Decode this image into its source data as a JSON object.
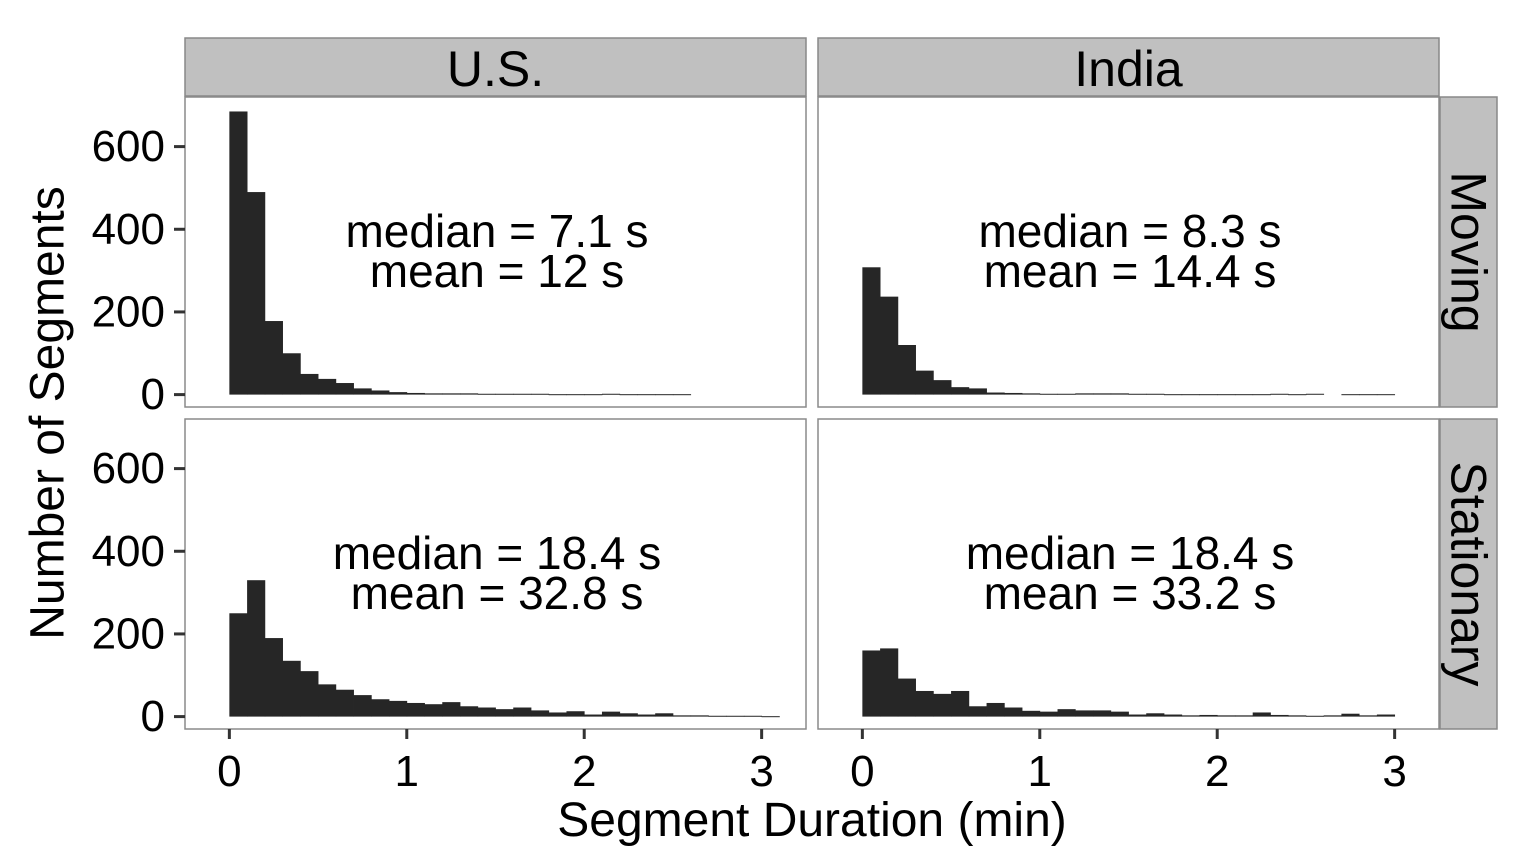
{
  "chart_data": {
    "type": "bar",
    "xlabel": "Segment Duration (min)",
    "ylabel": "Number of Segments",
    "col_facets": [
      "U.S.",
      "India"
    ],
    "row_facets": [
      "Moving",
      "Stationary"
    ],
    "xlim": [
      -0.25,
      3.25
    ],
    "ylim": [
      -30,
      720
    ],
    "x_ticks": [
      0,
      1,
      2,
      3
    ],
    "y_ticks": [
      0,
      200,
      400,
      600
    ],
    "bin_width": 0.1,
    "bin_starts": [
      0,
      0.1,
      0.2,
      0.3,
      0.4,
      0.5,
      0.6,
      0.7,
      0.8,
      0.9,
      1.0,
      1.1,
      1.2,
      1.3,
      1.4,
      1.5,
      1.6,
      1.7,
      1.8,
      1.9,
      2.0,
      2.1,
      2.2,
      2.3,
      2.4,
      2.5,
      2.6,
      2.7,
      2.8,
      2.9,
      3.0
    ],
    "panels": [
      {
        "col": "U.S.",
        "row": "Moving",
        "annotation": [
          "median = 7.1 s",
          "mean = 12 s"
        ],
        "counts": [
          685,
          490,
          178,
          100,
          50,
          38,
          28,
          15,
          10,
          6,
          4,
          3,
          3,
          3,
          2,
          2,
          2,
          2,
          1,
          1,
          1,
          2,
          1,
          1,
          1,
          1,
          0,
          0,
          0,
          0,
          0
        ]
      },
      {
        "col": "India",
        "row": "Moving",
        "annotation": [
          "median = 8.3 s",
          "mean = 14.4 s"
        ],
        "counts": [
          308,
          237,
          120,
          58,
          35,
          18,
          15,
          5,
          4,
          3,
          2,
          2,
          3,
          3,
          3,
          2,
          2,
          1,
          1,
          1,
          1,
          1,
          1,
          2,
          1,
          2,
          0,
          1,
          1,
          1,
          0
        ]
      },
      {
        "col": "U.S.",
        "row": "Stationary",
        "annotation": [
          "median = 18.4 s",
          "mean = 32.8 s"
        ],
        "counts": [
          250,
          330,
          190,
          135,
          110,
          78,
          65,
          52,
          42,
          38,
          33,
          30,
          35,
          25,
          22,
          18,
          22,
          15,
          10,
          13,
          5,
          12,
          8,
          5,
          8,
          3,
          3,
          2,
          2,
          2,
          1
        ]
      },
      {
        "col": "India",
        "row": "Stationary",
        "annotation": [
          "median = 18.4 s",
          "mean = 33.2 s"
        ],
        "counts": [
          160,
          165,
          92,
          62,
          55,
          62,
          25,
          33,
          22,
          14,
          12,
          18,
          15,
          15,
          12,
          5,
          8,
          5,
          3,
          4,
          3,
          3,
          10,
          4,
          3,
          2,
          3,
          7,
          3,
          5,
          0
        ]
      }
    ]
  }
}
